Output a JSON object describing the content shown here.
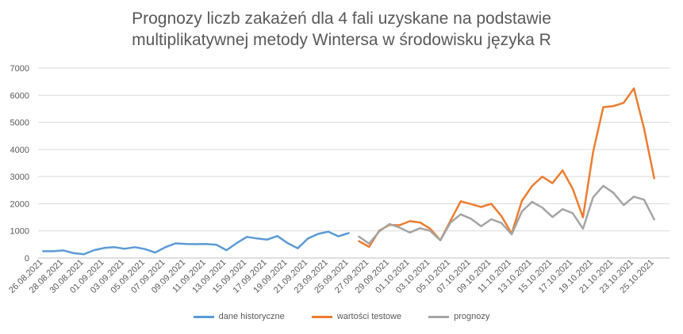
{
  "chart_data": {
    "type": "line",
    "title_line1": "Prognozy liczb zakażeń dla 4 fali uzyskane na podstawie",
    "title_line2": "multiplikatywnej metody Wintersa w środowisku języka R",
    "ylim": [
      0,
      7000
    ],
    "yticks": [
      "0",
      "1000",
      "2000",
      "3000",
      "4000",
      "5000",
      "6000",
      "7000"
    ],
    "grid": true,
    "legend_position": "bottom",
    "x": [
      "26.08.2021",
      "27.08.2021",
      "28.08.2021",
      "29.08.2021",
      "30.08.2021",
      "31.08.2021",
      "01.09.2021",
      "02.09.2021",
      "03.09.2021",
      "04.09.2021",
      "05.09.2021",
      "06.09.2021",
      "07.09.2021",
      "08.09.2021",
      "09.09.2021",
      "10.09.2021",
      "11.09.2021",
      "12.09.2021",
      "13.09.2021",
      "14.09.2021",
      "15.09.2021",
      "16.09.2021",
      "17.09.2021",
      "18.09.2021",
      "19.09.2021",
      "20.09.2021",
      "21.09.2021",
      "22.09.2021",
      "23.09.2021",
      "24.09.2021",
      "25.09.2021",
      "26.09.2021",
      "27.09.2021",
      "28.09.2021",
      "29.09.2021",
      "30.09.2021",
      "01.10.2021",
      "02.10.2021",
      "03.10.2021",
      "04.10.2021",
      "05.10.2021",
      "06.10.2021",
      "07.10.2021",
      "08.10.2021",
      "09.10.2021",
      "10.10.2021",
      "11.10.2021",
      "12.10.2021",
      "13.10.2021",
      "14.10.2021",
      "15.10.2021",
      "16.10.2021",
      "17.10.2021",
      "18.10.2021",
      "19.10.2021",
      "20.10.2021",
      "21.10.2021",
      "22.10.2021",
      "23.10.2021",
      "24.10.2021",
      "25.10.2021",
      "26.10.2021"
    ],
    "xtick_labels": [
      "26.08.2021",
      "28.08.2021",
      "30.08.2021",
      "01.09.2021",
      "03.09.2021",
      "05.09.2021",
      "07.09.2021",
      "09.09.2021",
      "11.09.2021",
      "13.09.2021",
      "15.09.2021",
      "17.09.2021",
      "19.09.2021",
      "21.09.2021",
      "23.09.2021",
      "25.09.2021",
      "27.09.2021",
      "29.09.2021",
      "01.10.2021",
      "03.10.2021",
      "05.10.2021",
      "07.10.2021",
      "09.10.2021",
      "11.10.2021",
      "13.10.2021",
      "15.10.2021",
      "17.10.2021",
      "19.10.2021",
      "21.10.2021",
      "23.10.2021",
      "25.10.2021"
    ],
    "series": [
      {
        "name": "dane historyczne",
        "color": "#5b9bd5",
        "values": [
          250,
          250,
          280,
          180,
          140,
          290,
          370,
          400,
          340,
          400,
          330,
          200,
          400,
          540,
          520,
          510,
          520,
          490,
          290,
          550,
          780,
          720,
          680,
          810,
          550,
          360,
          720,
          890,
          970,
          800,
          920,
          null,
          null,
          null,
          null,
          null,
          null,
          null,
          null,
          null,
          null,
          null,
          null,
          null,
          null,
          null,
          null,
          null,
          null,
          null,
          null,
          null,
          null,
          null,
          null,
          null,
          null,
          null,
          null,
          null,
          null,
          null
        ]
      },
      {
        "name": "wartości testowe",
        "color": "#ed7d31",
        "values": [
          null,
          null,
          null,
          null,
          null,
          null,
          null,
          null,
          null,
          null,
          null,
          null,
          null,
          null,
          null,
          null,
          null,
          null,
          null,
          null,
          null,
          null,
          null,
          null,
          null,
          null,
          null,
          null,
          null,
          null,
          null,
          620,
          410,
          1010,
          1220,
          1210,
          1360,
          1310,
          1080,
          660,
          1380,
          2090,
          1990,
          1880,
          2000,
          1540,
          900,
          2100,
          2650,
          3000,
          2760,
          3230,
          2550,
          1500,
          3910,
          5560,
          5600,
          5720,
          6250,
          4770,
          2940,
          null
        ]
      },
      {
        "name": "prognozy",
        "color": "#a5a5a5",
        "values": [
          null,
          null,
          null,
          null,
          null,
          null,
          null,
          null,
          null,
          null,
          null,
          null,
          null,
          null,
          null,
          null,
          null,
          null,
          null,
          null,
          null,
          null,
          null,
          null,
          null,
          null,
          null,
          null,
          null,
          null,
          null,
          790,
          530,
          980,
          1250,
          1120,
          940,
          1100,
          1000,
          650,
          1310,
          1610,
          1450,
          1170,
          1430,
          1290,
          870,
          1710,
          2070,
          1860,
          1510,
          1800,
          1650,
          1080,
          2240,
          2660,
          2400,
          1950,
          2260,
          2150,
          1420,
          null
        ]
      }
    ]
  }
}
